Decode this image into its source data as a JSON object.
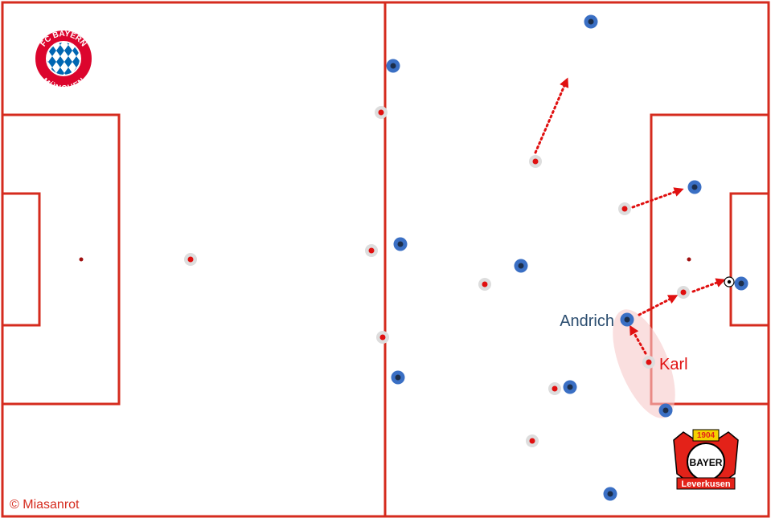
{
  "labels": {
    "andrich": "Andrich",
    "karl": "Karl"
  },
  "credit": "© Miasanrot",
  "logos": {
    "bayern": {
      "name": "FC BAYERN",
      "city": "MÜNCHEN"
    },
    "leverkusen": {
      "year": "1904",
      "name": "BAYER",
      "city": "Leverkusen"
    }
  }
}
